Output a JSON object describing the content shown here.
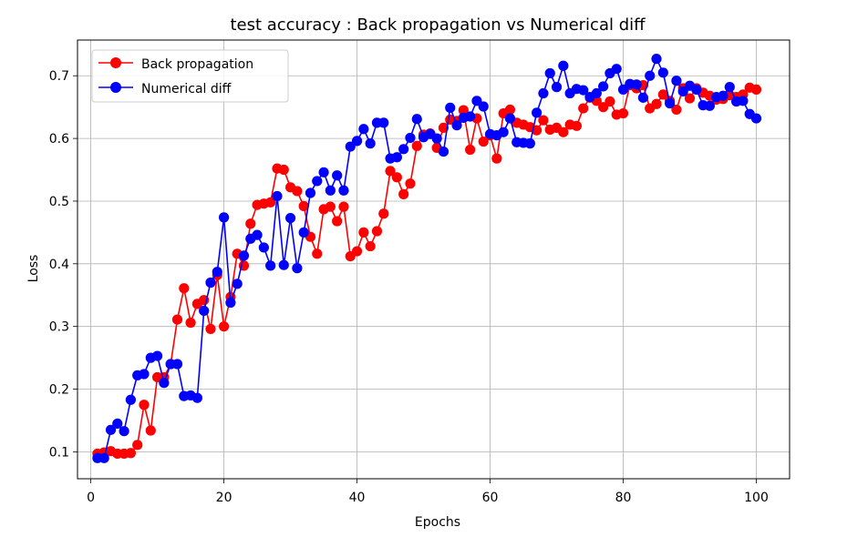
{
  "chart_data": {
    "type": "line",
    "title": "test accuracy : Back propagation vs Numerical diff",
    "xlabel": "Epochs",
    "ylabel": "Loss",
    "xlim": [
      -2,
      105
    ],
    "ylim": [
      0.057,
      0.757
    ],
    "x_ticks": [
      0,
      20,
      40,
      60,
      80,
      100
    ],
    "y_ticks": [
      0.1,
      0.2,
      0.3,
      0.4,
      0.5,
      0.6,
      0.7
    ],
    "y_tick_labels": [
      "0.1",
      "0.2",
      "0.3",
      "0.4",
      "0.5",
      "0.6",
      "0.7"
    ],
    "grid": true,
    "legend_position": "top-left",
    "series": [
      {
        "name": "Back propagation",
        "color": "#ff0000",
        "x": [
          1,
          2,
          3,
          4,
          5,
          6,
          7,
          8,
          9,
          10,
          11,
          12,
          13,
          14,
          15,
          16,
          17,
          18,
          19,
          20,
          21,
          22,
          23,
          24,
          25,
          26,
          27,
          28,
          29,
          30,
          31,
          32,
          33,
          34,
          35,
          36,
          37,
          38,
          39,
          40,
          41,
          42,
          43,
          44,
          45,
          46,
          47,
          48,
          49,
          50,
          51,
          52,
          53,
          54,
          55,
          56,
          57,
          58,
          59,
          60,
          61,
          62,
          63,
          64,
          65,
          66,
          67,
          68,
          69,
          70,
          71,
          72,
          73,
          74,
          75,
          76,
          77,
          78,
          79,
          80,
          81,
          82,
          83,
          84,
          85,
          86,
          87,
          88,
          89,
          90,
          91,
          92,
          93,
          94,
          95,
          96,
          97,
          98,
          99,
          100
        ],
        "values": [
          0.097,
          0.099,
          0.101,
          0.097,
          0.097,
          0.098,
          0.111,
          0.175,
          0.134,
          0.219,
          0.219,
          0.24,
          0.311,
          0.361,
          0.306,
          0.336,
          0.342,
          0.296,
          0.382,
          0.3,
          0.347,
          0.416,
          0.397,
          0.464,
          0.494,
          0.496,
          0.498,
          0.552,
          0.55,
          0.522,
          0.516,
          0.492,
          0.443,
          0.416,
          0.487,
          0.491,
          0.468,
          0.491,
          0.412,
          0.42,
          0.45,
          0.428,
          0.452,
          0.48,
          0.548,
          0.538,
          0.511,
          0.528,
          0.588,
          0.606,
          0.608,
          0.585,
          0.617,
          0.63,
          0.628,
          0.645,
          0.582,
          0.632,
          0.595,
          0.605,
          0.568,
          0.64,
          0.646,
          0.625,
          0.622,
          0.618,
          0.613,
          0.629,
          0.614,
          0.617,
          0.61,
          0.622,
          0.62,
          0.648,
          0.665,
          0.66,
          0.65,
          0.659,
          0.638,
          0.64,
          0.685,
          0.68,
          0.685,
          0.648,
          0.655,
          0.67,
          0.66,
          0.646,
          0.68,
          0.664,
          0.68,
          0.673,
          0.668,
          0.662,
          0.663,
          0.669,
          0.666,
          0.67,
          0.681,
          0.678
        ]
      },
      {
        "name": "Numerical diff",
        "color": "#0000ff",
        "x": [
          1,
          2,
          3,
          4,
          5,
          6,
          7,
          8,
          9,
          10,
          11,
          12,
          13,
          14,
          15,
          16,
          17,
          18,
          19,
          20,
          21,
          22,
          23,
          24,
          25,
          26,
          27,
          28,
          29,
          30,
          31,
          32,
          33,
          34,
          35,
          36,
          37,
          38,
          39,
          40,
          41,
          42,
          43,
          44,
          45,
          46,
          47,
          48,
          49,
          50,
          51,
          52,
          53,
          54,
          55,
          56,
          57,
          58,
          59,
          60,
          61,
          62,
          63,
          64,
          65,
          66,
          67,
          68,
          69,
          70,
          71,
          72,
          73,
          74,
          75,
          76,
          77,
          78,
          79,
          80,
          81,
          82,
          83,
          84,
          85,
          86,
          87,
          88,
          89,
          90,
          91,
          92,
          93,
          94,
          95,
          96,
          97,
          98,
          99,
          100
        ],
        "values": [
          0.09,
          0.09,
          0.135,
          0.145,
          0.133,
          0.183,
          0.222,
          0.224,
          0.25,
          0.253,
          0.21,
          0.24,
          0.24,
          0.189,
          0.19,
          0.186,
          0.325,
          0.37,
          0.387,
          0.474,
          0.338,
          0.368,
          0.413,
          0.44,
          0.446,
          0.426,
          0.397,
          0.508,
          0.398,
          0.473,
          0.393,
          0.45,
          0.513,
          0.532,
          0.546,
          0.517,
          0.541,
          0.517,
          0.587,
          0.596,
          0.615,
          0.592,
          0.625,
          0.625,
          0.568,
          0.57,
          0.583,
          0.601,
          0.631,
          0.602,
          0.607,
          0.6,
          0.579,
          0.649,
          0.621,
          0.633,
          0.635,
          0.66,
          0.651,
          0.607,
          0.605,
          0.61,
          0.632,
          0.594,
          0.593,
          0.592,
          0.641,
          0.672,
          0.704,
          0.682,
          0.716,
          0.672,
          0.679,
          0.677,
          0.666,
          0.672,
          0.683,
          0.704,
          0.711,
          0.678,
          0.687,
          0.686,
          0.665,
          0.7,
          0.727,
          0.705,
          0.656,
          0.692,
          0.675,
          0.684,
          0.678,
          0.653,
          0.652,
          0.666,
          0.668,
          0.682,
          0.659,
          0.66,
          0.639,
          0.632
        ]
      }
    ]
  }
}
